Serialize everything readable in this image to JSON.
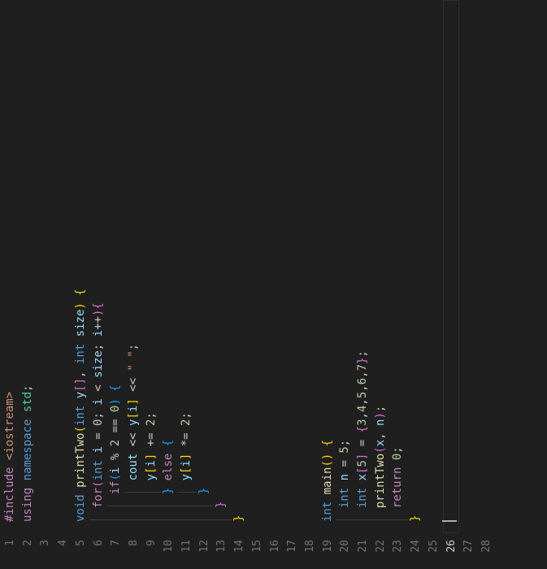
{
  "editor": {
    "language": "cpp",
    "active_line": 26,
    "line_numbers": [
      1,
      2,
      3,
      4,
      5,
      6,
      7,
      8,
      9,
      10,
      11,
      12,
      13,
      14,
      15,
      16,
      17,
      18,
      19,
      20,
      21,
      22,
      23,
      24,
      25,
      26,
      27,
      28
    ],
    "lines": [
      "#include <iostream>",
      "using namespace std;",
      "",
      "",
      "void printTwo(int y[], int size) {",
      "  for(int i = 0; i < size; i++){",
      "    if(i % 2 == 0) {",
      "      cout << y[i] << \" \";",
      "      y[i] += 2;",
      "    } else {",
      "      y[i] *= 2;",
      "    }",
      "  }",
      "}",
      "",
      "",
      "",
      "",
      "int main() {",
      "  int n = 5;",
      "  int x[5] = {3,4,5,6,7};",
      "  printTwo(x, n);",
      "  return 0;",
      "}",
      "",
      "",
      "",
      ""
    ]
  },
  "colors": {
    "background": "#1f1f1f",
    "keyword": "#569cd6",
    "control": "#c586c0",
    "function": "#dcdcaa",
    "variable": "#9cdcfe",
    "namespace": "#4ec9b0",
    "string": "#ce9178",
    "number": "#b5cea8",
    "bracket_level1": "#ffd700",
    "bracket_level2": "#da70d6",
    "bracket_level3": "#179fff"
  }
}
